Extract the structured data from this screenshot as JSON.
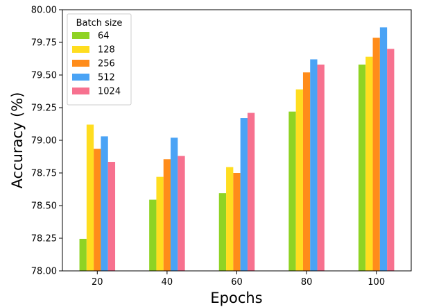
{
  "chart_data": {
    "type": "bar",
    "title": "",
    "xlabel": "Epochs",
    "ylabel": "Accuracy (%)",
    "categories": [
      "20",
      "40",
      "60",
      "80",
      "100"
    ],
    "ylim": [
      78.0,
      80.0
    ],
    "yticks": [
      "78.00",
      "78.25",
      "78.50",
      "78.75",
      "79.00",
      "79.25",
      "79.50",
      "79.75",
      "80.00"
    ],
    "grid": false,
    "legend": {
      "title": "Batch size",
      "placement": "top-left"
    },
    "series": [
      {
        "name": "64",
        "color": "#8fd324",
        "values": [
          78.245,
          78.545,
          78.595,
          79.22,
          79.58
        ]
      },
      {
        "name": "128",
        "color": "#ffdd1f",
        "values": [
          79.12,
          78.72,
          78.795,
          79.39,
          79.64
        ]
      },
      {
        "name": "256",
        "color": "#ff8c1a",
        "values": [
          78.935,
          78.855,
          78.75,
          79.52,
          79.785
        ]
      },
      {
        "name": "512",
        "color": "#4aa3f5",
        "values": [
          79.03,
          79.02,
          79.17,
          79.62,
          79.865
        ]
      },
      {
        "name": "1024",
        "color": "#f7718f",
        "values": [
          78.835,
          78.88,
          79.21,
          79.58,
          79.7
        ]
      }
    ]
  }
}
